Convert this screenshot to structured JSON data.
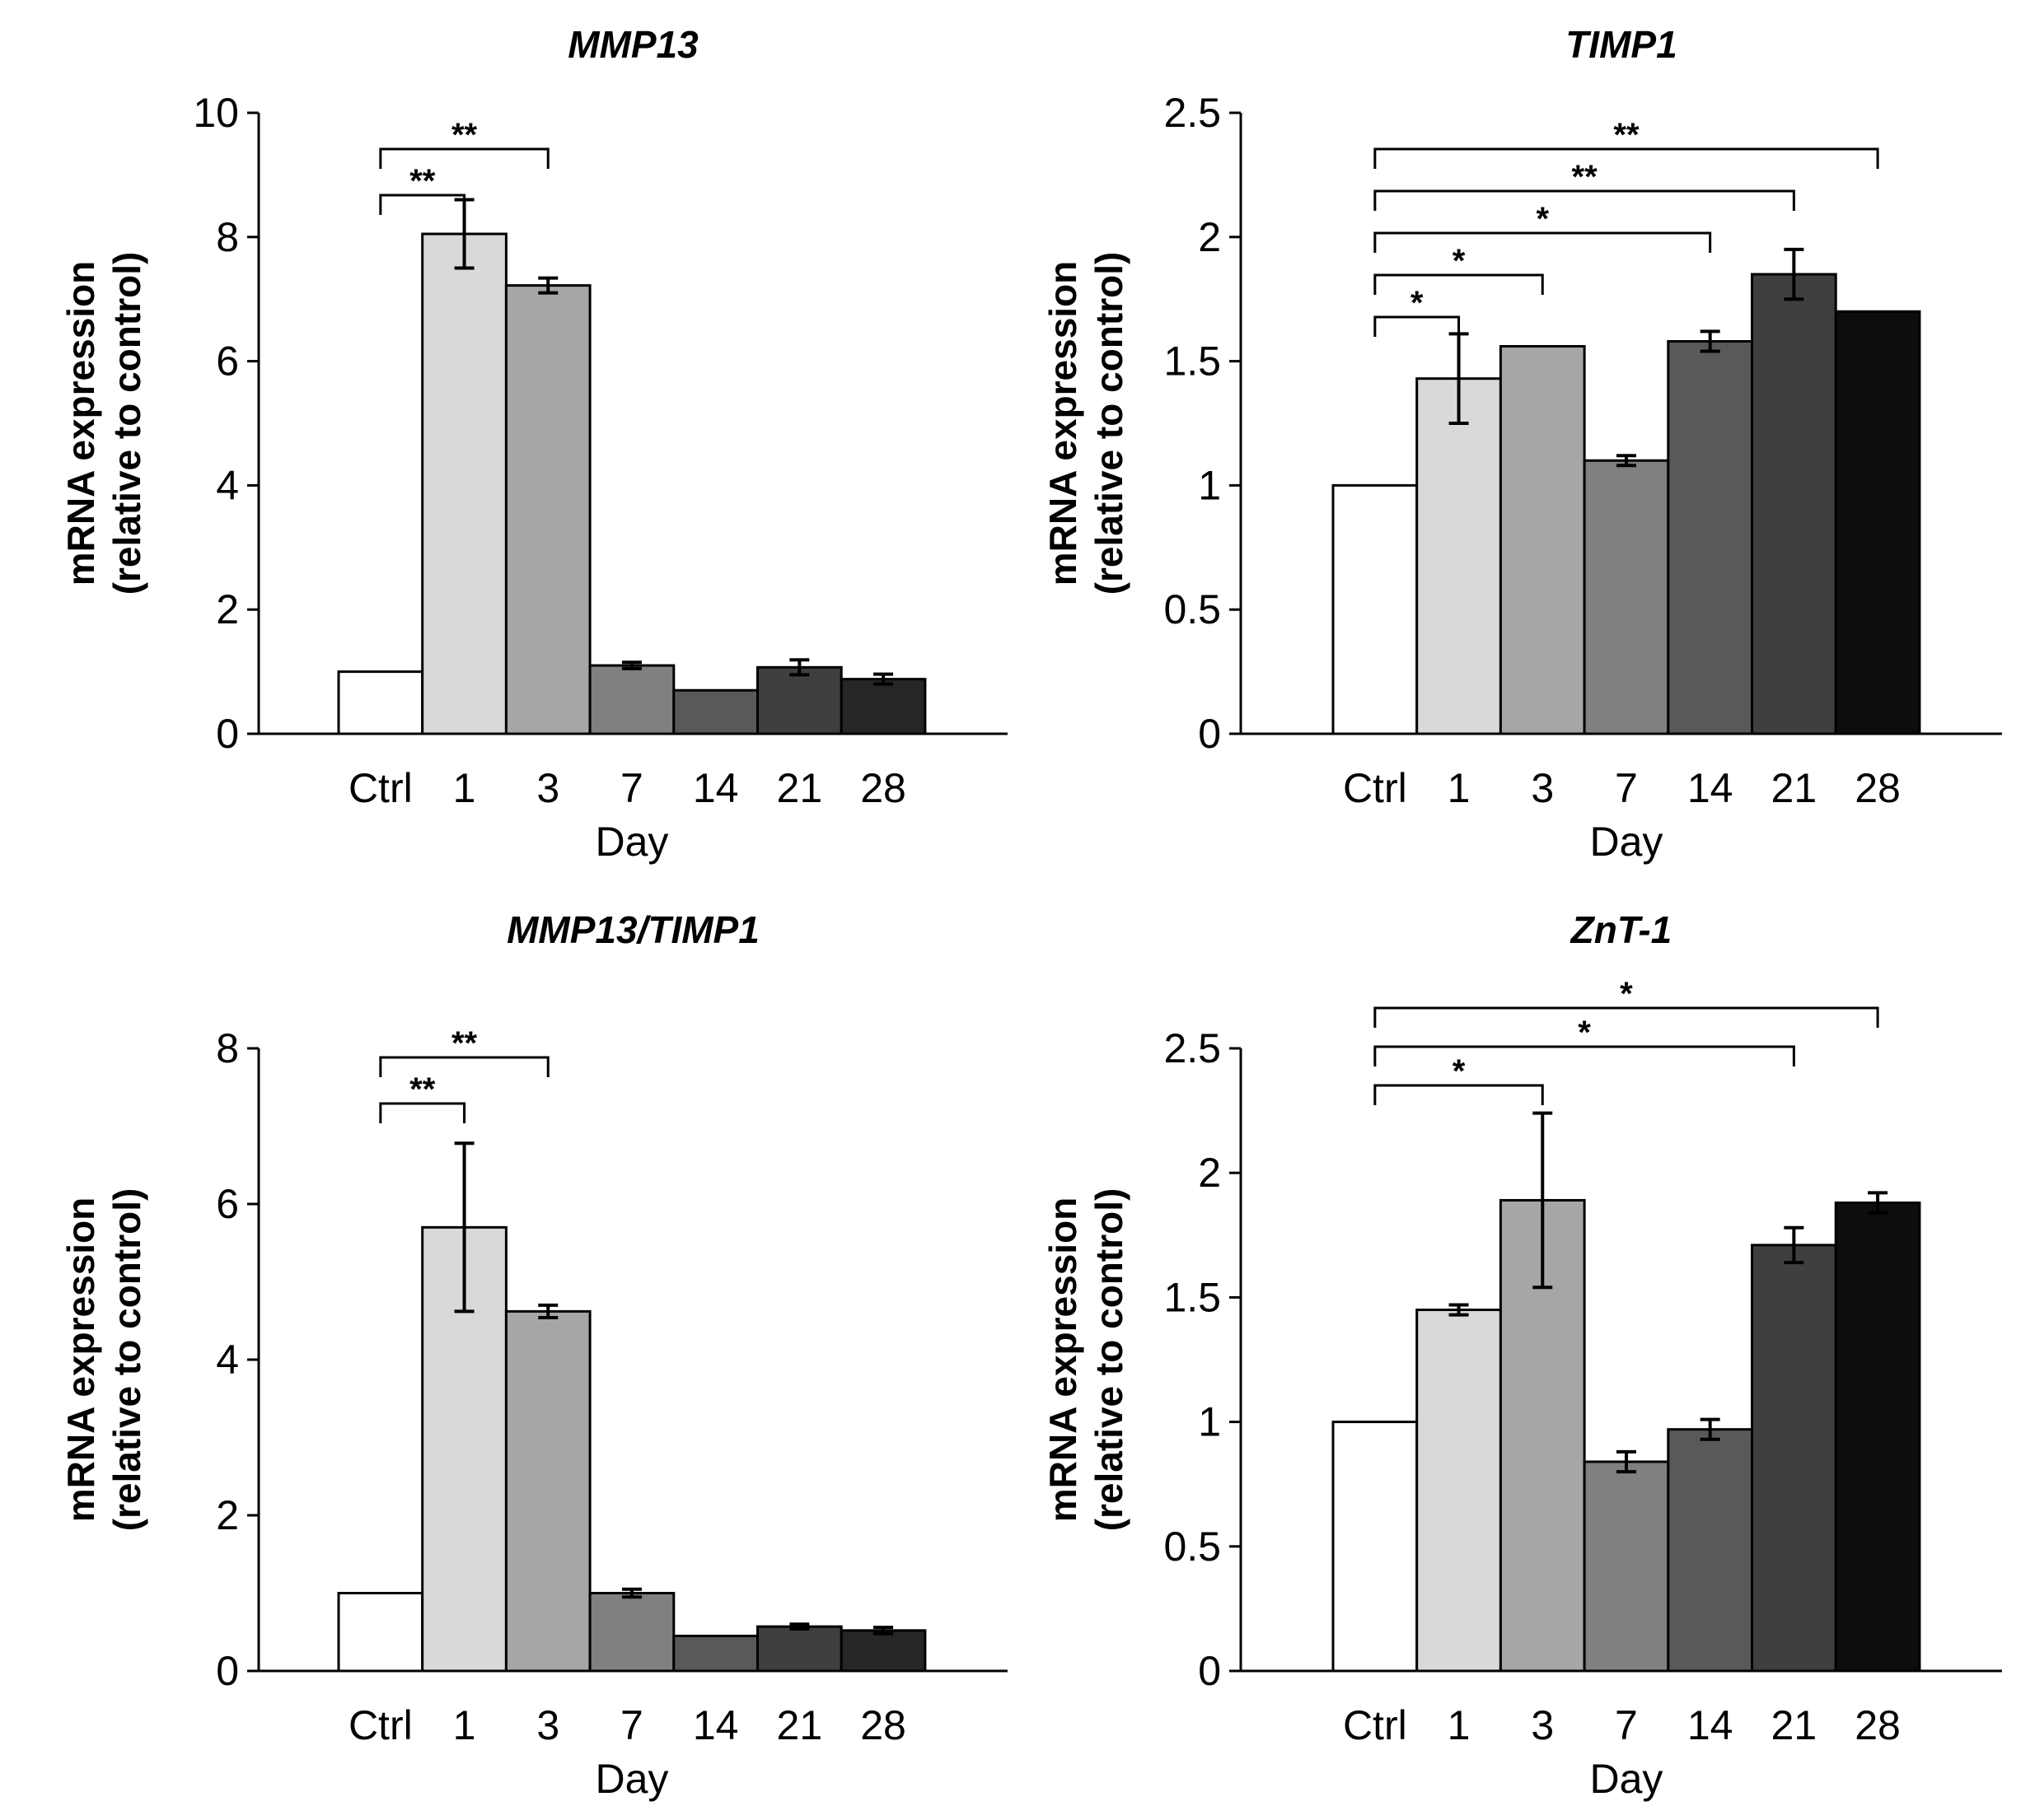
{
  "chart_data": [
    {
      "type": "bar",
      "title": "MMP13",
      "xlabel": "Day",
      "ylabel": [
        "mRNA expression",
        "(relative to control)"
      ],
      "categories": [
        "Ctrl",
        "1",
        "3",
        "7",
        "14",
        "21",
        "28"
      ],
      "values": [
        1,
        8.05,
        7.22,
        1.1,
        0.7,
        1.07,
        0.88
      ],
      "errors": [
        0,
        0.55,
        0.12,
        0.05,
        0,
        0.12,
        0.08
      ],
      "ylim": [
        0,
        10
      ],
      "yticks": [
        "0",
        "2",
        "4",
        "6",
        "8",
        "10"
      ],
      "ytick_values": [
        0,
        2,
        4,
        6,
        8,
        10
      ],
      "bar_colors": [
        "#ffffff",
        "#d9d9d9",
        "#a6a6a6",
        "#808080",
        "#595959",
        "#3f3f3f",
        "#262626"
      ],
      "significance": [
        {
          "from": "Ctrl",
          "to": "1",
          "label": "**"
        },
        {
          "from": "Ctrl",
          "to": "3",
          "label": "**"
        }
      ]
    },
    {
      "type": "bar",
      "title": "TIMP1",
      "xlabel": "Day",
      "ylabel": [
        "mRNA expression",
        "(relative to control)"
      ],
      "categories": [
        "Ctrl",
        "1",
        "3",
        "7",
        "14",
        "21",
        "28"
      ],
      "values": [
        1,
        1.43,
        1.56,
        1.1,
        1.58,
        1.85,
        1.7
      ],
      "errors": [
        0,
        0.18,
        0,
        0.02,
        0.04,
        0.1,
        0
      ],
      "ylim": [
        0,
        2.5
      ],
      "yticks": [
        "0",
        "0.5",
        "1",
        "1.5",
        "2",
        "2.5"
      ],
      "ytick_values": [
        0,
        0.5,
        1,
        1.5,
        2,
        2.5
      ],
      "bar_colors": [
        "#ffffff",
        "#d9d9d9",
        "#a6a6a6",
        "#808080",
        "#595959",
        "#3f3f3f",
        "#0d0d0d"
      ],
      "significance": [
        {
          "from": "Ctrl",
          "to": "1",
          "label": "*"
        },
        {
          "from": "Ctrl",
          "to": "3",
          "label": "*"
        },
        {
          "from": "Ctrl",
          "to": "14",
          "label": "*"
        },
        {
          "from": "Ctrl",
          "to": "21",
          "label": "**"
        },
        {
          "from": "Ctrl",
          "to": "28",
          "label": "**"
        }
      ]
    },
    {
      "type": "bar",
      "title": "MMP13/TIMP1",
      "xlabel": "Day",
      "ylabel": [
        "mRNA expression",
        "(relative to control)"
      ],
      "categories": [
        "Ctrl",
        "1",
        "3",
        "7",
        "14",
        "21",
        "28"
      ],
      "values": [
        1,
        5.7,
        4.62,
        1.0,
        0.45,
        0.57,
        0.52
      ],
      "errors": [
        0,
        1.08,
        0.08,
        0.05,
        0,
        0.03,
        0.04
      ],
      "ylim": [
        0,
        8
      ],
      "yticks": [
        "0",
        "2",
        "4",
        "6",
        "8"
      ],
      "ytick_values": [
        0,
        2,
        4,
        6,
        8
      ],
      "bar_colors": [
        "#ffffff",
        "#d9d9d9",
        "#a6a6a6",
        "#808080",
        "#595959",
        "#3f3f3f",
        "#262626"
      ],
      "significance": [
        {
          "from": "Ctrl",
          "to": "1",
          "label": "**"
        },
        {
          "from": "Ctrl",
          "to": "3",
          "label": "**"
        }
      ]
    },
    {
      "type": "bar",
      "title": "ZnT-1",
      "xlabel": "Day",
      "ylabel": [
        "mRNA expression",
        "(relative to control)"
      ],
      "categories": [
        "Ctrl",
        "1",
        "3",
        "7",
        "14",
        "21",
        "28"
      ],
      "values": [
        1,
        1.45,
        1.89,
        0.84,
        0.97,
        1.71,
        1.88
      ],
      "errors": [
        0,
        0.02,
        0.35,
        0.04,
        0.04,
        0.07,
        0.04
      ],
      "ylim": [
        0,
        2.5
      ],
      "yticks": [
        "0",
        "0.5",
        "1",
        "1.5",
        "2",
        "2.5"
      ],
      "ytick_values": [
        0,
        0.5,
        1,
        1.5,
        2,
        2.5
      ],
      "bar_colors": [
        "#ffffff",
        "#d9d9d9",
        "#a6a6a6",
        "#808080",
        "#595959",
        "#3f3f3f",
        "#0d0d0d"
      ],
      "significance": [
        {
          "from": "Ctrl",
          "to": "3",
          "label": "*"
        },
        {
          "from": "Ctrl",
          "to": "21",
          "label": "*"
        },
        {
          "from": "Ctrl",
          "to": "28",
          "label": "*"
        }
      ]
    }
  ]
}
